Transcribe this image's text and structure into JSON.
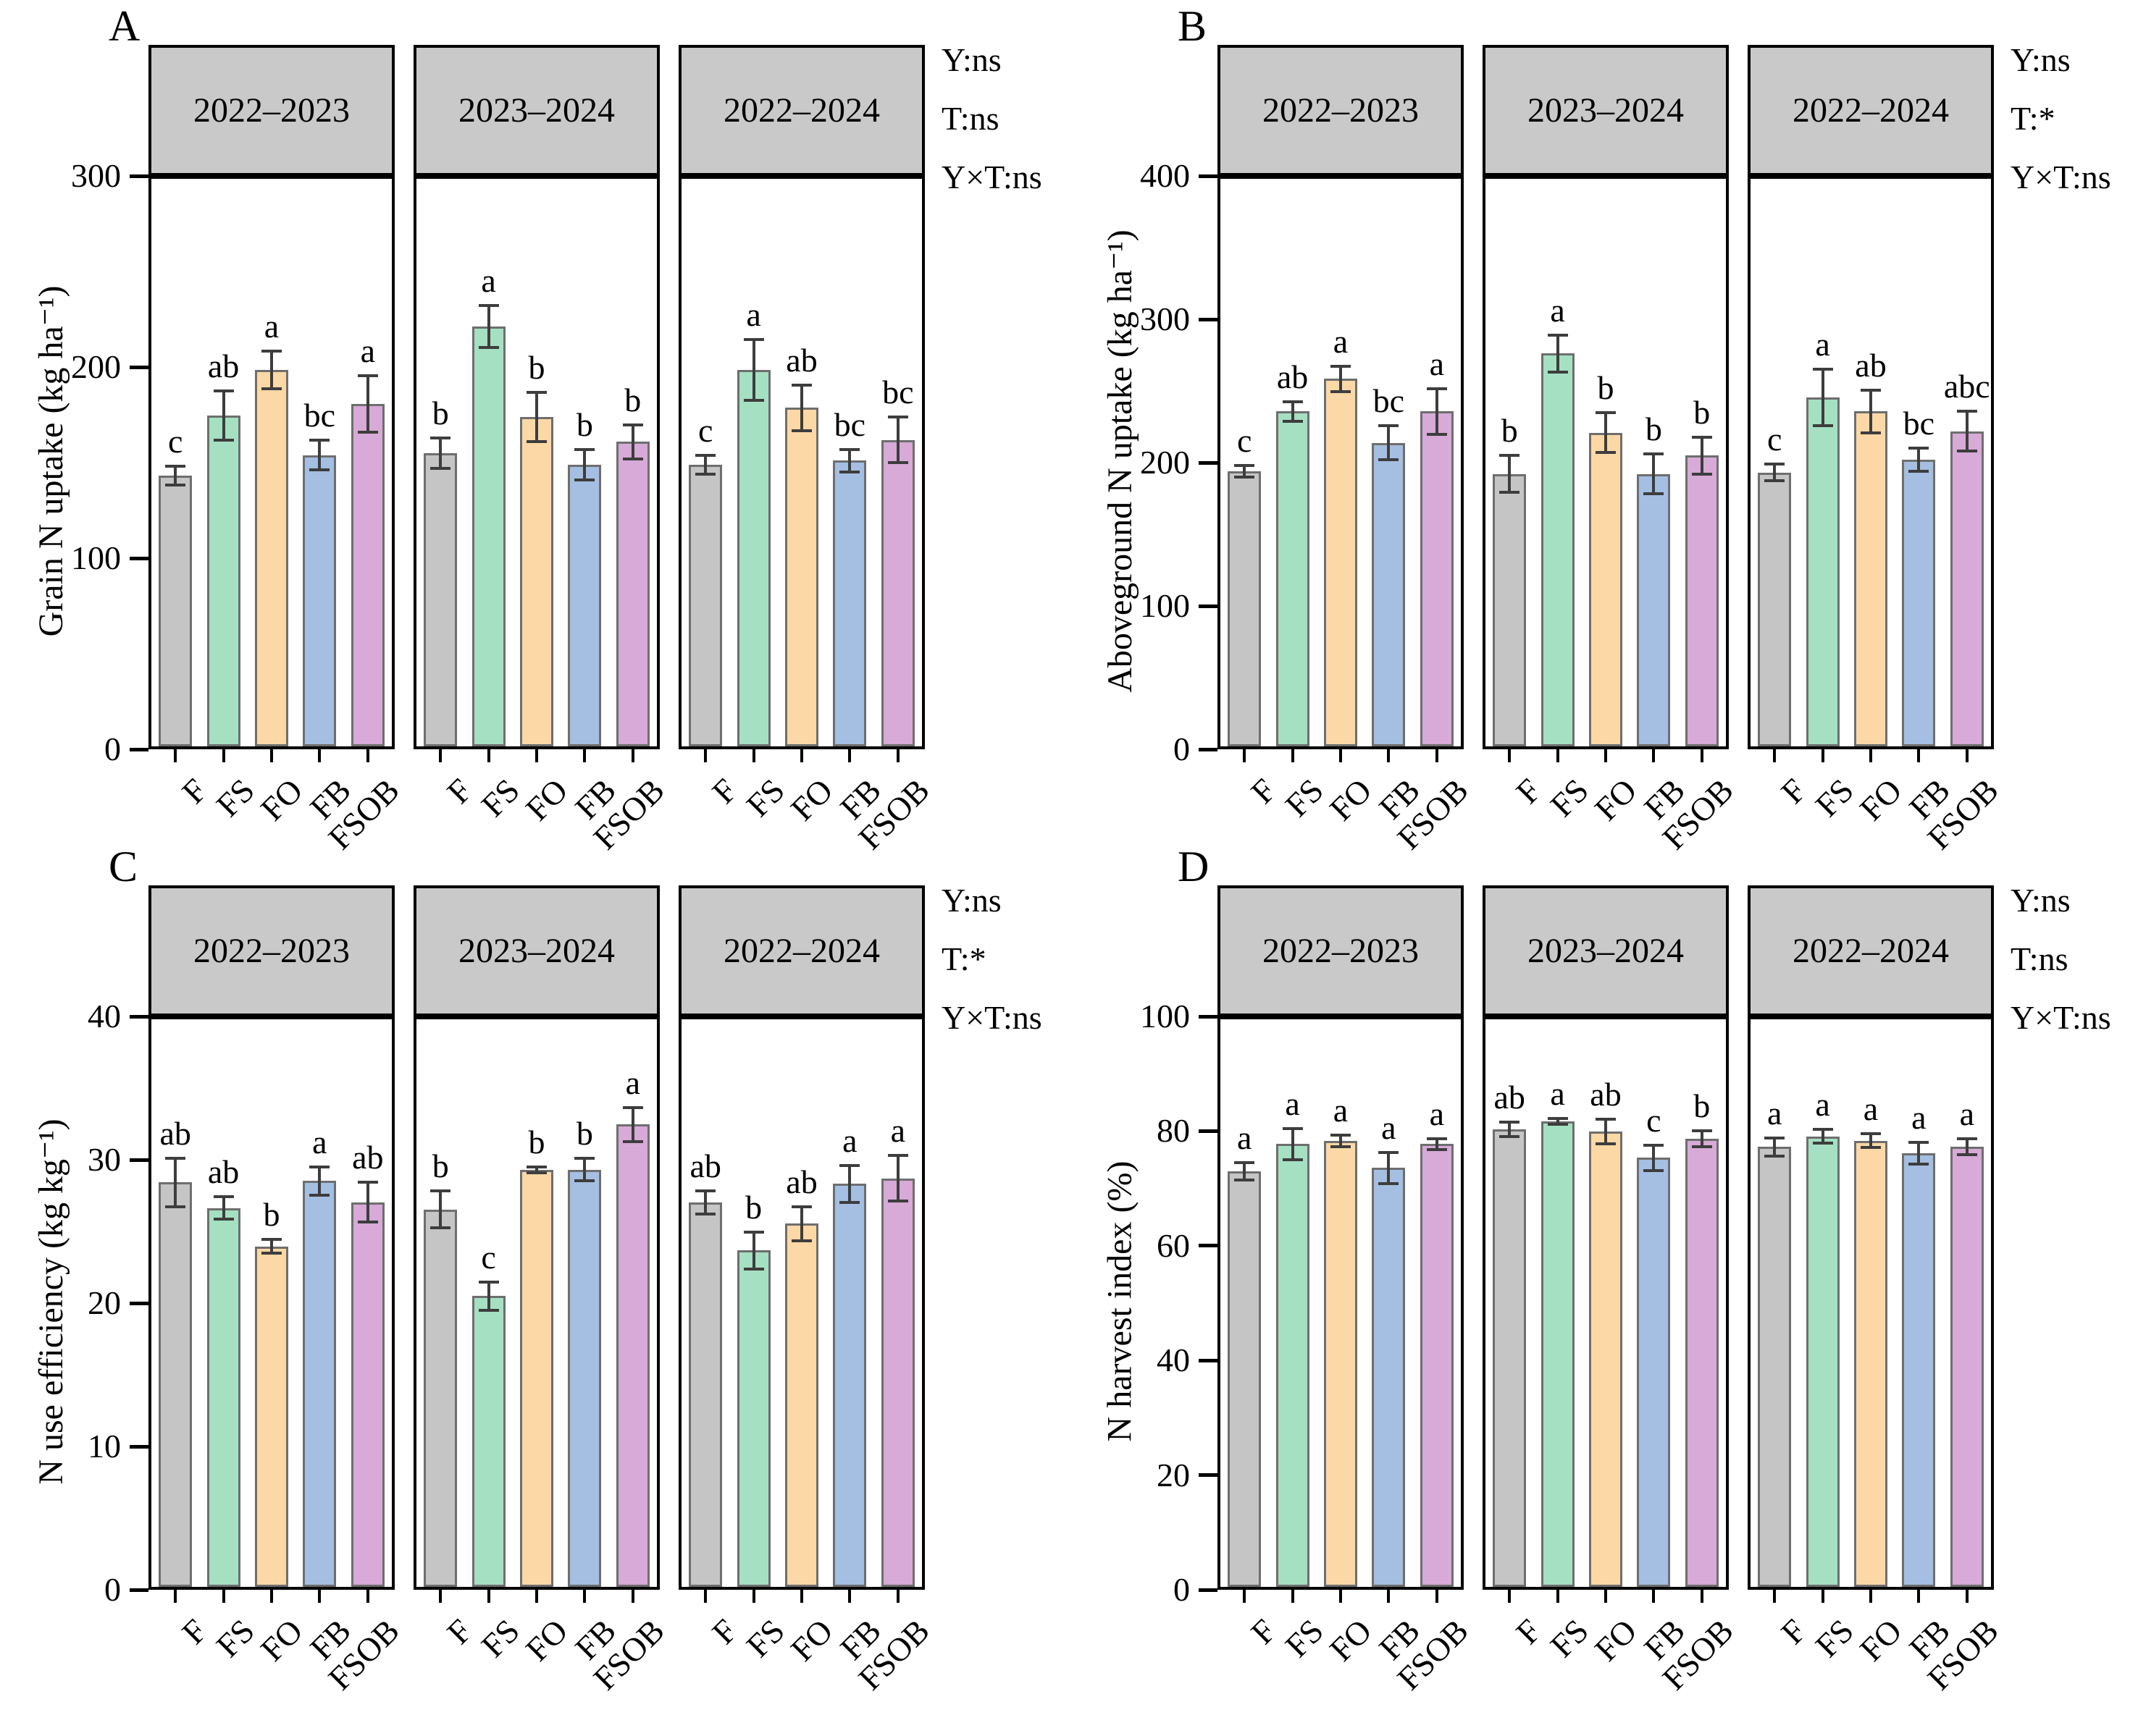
{
  "treatments": [
    "F",
    "FS",
    "FO",
    "FB",
    "FSOB"
  ],
  "facet_labels": [
    "2022–2023",
    "2023–2024",
    "2022–2024"
  ],
  "colors": {
    "bar_fills": [
      "#c5c5c5",
      "#a5e0c3",
      "#fcd8a6",
      "#a4bfe2",
      "#d7aad7"
    ],
    "bar_border": "#6e6e6e",
    "error_bar": "#3d3d3d",
    "header_fill": "#c9c9c9",
    "frame": "#000000"
  },
  "chart_data": [
    {
      "type": "bar",
      "panel_letter": "A",
      "ylabel": "Grain N uptake (kg ha⁻¹)",
      "xlabel": "",
      "ylim": [
        0,
        300
      ],
      "yticks": [
        0,
        100,
        200,
        300
      ],
      "categories": [
        "F",
        "FS",
        "FO",
        "FB",
        "FSOB"
      ],
      "grid": false,
      "legend_position": "none",
      "facets": [
        {
          "label": "2022–2023",
          "values": [
            143,
            175,
            199,
            154,
            181
          ],
          "errors": [
            5,
            13,
            10,
            8,
            15
          ],
          "sig_letters": [
            "c",
            "ab",
            "a",
            "bc",
            "a"
          ]
        },
        {
          "label": "2023–2024",
          "values": [
            155,
            222,
            174,
            149,
            161
          ],
          "errors": [
            8,
            11,
            13,
            8,
            9
          ],
          "sig_letters": [
            "b",
            "a",
            "b",
            "b",
            "b"
          ]
        },
        {
          "label": "2022–2024",
          "values": [
            149,
            199,
            179,
            151,
            162
          ],
          "errors": [
            5,
            16,
            12,
            6,
            12
          ],
          "sig_letters": [
            "c",
            "a",
            "ab",
            "bc",
            "bc"
          ]
        }
      ],
      "annotations": [
        "Y:ns",
        "T:ns",
        "Y×T:ns"
      ]
    },
    {
      "type": "bar",
      "panel_letter": "B",
      "ylabel": "Aboveground N uptake (kg ha⁻¹)",
      "xlabel": "",
      "ylim": [
        0,
        400
      ],
      "yticks": [
        0,
        100,
        200,
        300,
        400
      ],
      "categories": [
        "F",
        "FS",
        "FO",
        "FB",
        "FSOB"
      ],
      "grid": false,
      "legend_position": "none",
      "facets": [
        {
          "label": "2022–2023",
          "values": [
            194,
            236,
            259,
            214,
            236
          ],
          "errors": [
            4,
            7,
            9,
            12,
            16
          ],
          "sig_letters": [
            "c",
            "ab",
            "a",
            "bc",
            "a"
          ]
        },
        {
          "label": "2023–2024",
          "values": [
            192,
            277,
            221,
            192,
            205
          ],
          "errors": [
            13,
            13,
            14,
            14,
            13
          ],
          "sig_letters": [
            "b",
            "a",
            "b",
            "b",
            "b"
          ]
        },
        {
          "label": "2022–2024",
          "values": [
            193,
            246,
            236,
            202,
            222
          ],
          "errors": [
            6,
            20,
            15,
            8,
            14
          ],
          "sig_letters": [
            "c",
            "a",
            "ab",
            "bc",
            "abc"
          ]
        }
      ],
      "annotations": [
        "Y:ns",
        "T:*",
        "Y×T:ns"
      ]
    },
    {
      "type": "bar",
      "panel_letter": "C",
      "ylabel": "N use efficiency (kg kg⁻¹)",
      "xlabel": "",
      "ylim": [
        0,
        40
      ],
      "yticks": [
        0,
        10,
        20,
        30,
        40
      ],
      "categories": [
        "F",
        "FS",
        "FO",
        "FB",
        "FSOB"
      ],
      "grid": false,
      "legend_position": "none",
      "facets": [
        {
          "label": "2022–2023",
          "values": [
            28.5,
            26.7,
            24.0,
            28.6,
            27.1
          ],
          "errors": [
            1.7,
            0.8,
            0.5,
            1.0,
            1.4
          ],
          "sig_letters": [
            "ab",
            "ab",
            "b",
            "a",
            "ab"
          ]
        },
        {
          "label": "2023–2024",
          "values": [
            26.6,
            20.5,
            29.4,
            29.4,
            32.6
          ],
          "errors": [
            1.3,
            1.0,
            0.2,
            0.8,
            1.2
          ],
          "sig_letters": [
            "b",
            "c",
            "b",
            "b",
            "a"
          ]
        },
        {
          "label": "2022–2024",
          "values": [
            27.1,
            23.7,
            25.6,
            28.4,
            28.8
          ],
          "errors": [
            0.8,
            1.3,
            1.2,
            1.3,
            1.6
          ],
          "sig_letters": [
            "ab",
            "b",
            "ab",
            "a",
            "a"
          ]
        }
      ],
      "annotations": [
        "Y:ns",
        "T:*",
        "Y×T:ns"
      ]
    },
    {
      "type": "bar",
      "panel_letter": "D",
      "ylabel": "N harvest index (%)",
      "xlabel": "",
      "ylim": [
        0,
        100
      ],
      "yticks": [
        0,
        20,
        40,
        60,
        80,
        100
      ],
      "categories": [
        "F",
        "FS",
        "FO",
        "FB",
        "FSOB"
      ],
      "grid": false,
      "legend_position": "none",
      "facets": [
        {
          "label": "2022–2023",
          "values": [
            73.2,
            78.0,
            78.6,
            73.8,
            78.0
          ],
          "errors": [
            1.5,
            2.7,
            1.0,
            2.7,
            1.0
          ],
          "sig_letters": [
            "a",
            "a",
            "a",
            "a",
            "a"
          ]
        },
        {
          "label": "2023–2024",
          "values": [
            80.6,
            82.0,
            80.2,
            75.6,
            79.0
          ],
          "errors": [
            1.3,
            0.5,
            2.2,
            2.2,
            1.4
          ],
          "sig_letters": [
            "ab",
            "a",
            "ab",
            "c",
            "b"
          ]
        },
        {
          "label": "2022–2024",
          "values": [
            77.5,
            79.4,
            78.6,
            76.4,
            77.6
          ],
          "errors": [
            1.6,
            1.2,
            1.2,
            1.9,
            1.4
          ],
          "sig_letters": [
            "a",
            "a",
            "a",
            "a",
            "a"
          ]
        }
      ],
      "annotations": [
        "Y:ns",
        "T:ns",
        "Y×T:ns"
      ]
    }
  ]
}
